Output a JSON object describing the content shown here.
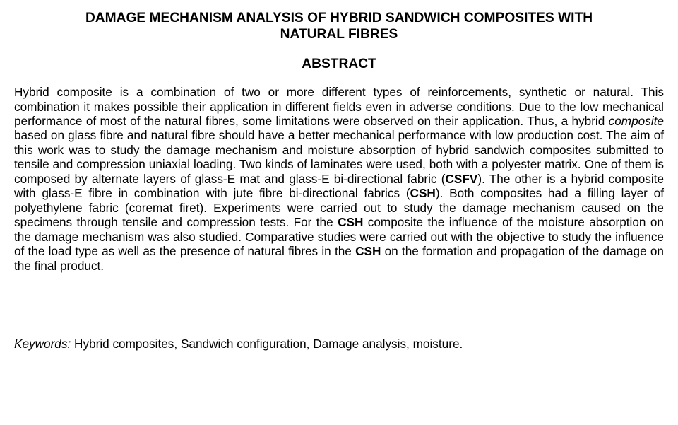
{
  "title_line1": "DAMAGE MECHANISM ANALYSIS OF HYBRID SANDWICH COMPOSITES WITH",
  "title_line2": "NATURAL FIBRES",
  "abstract_heading": "ABSTRACT",
  "abstract": {
    "s1a": "Hybrid composite is a combination of two or more different types of reinforcements, synthetic or natural. This combination it makes possible their application in different fields even in adverse conditions. Due to the low mechanical performance of most of the natural fibres, some limitations were observed on their application. Thus, a hybrid ",
    "s1b_italic": "composite",
    "s1c": " based on glass fibre and natural fibre should have a better mechanical performance with low production cost. The aim of this work was to study the damage mechanism and moisture absorption of hybrid sandwich composites submitted to tensile and compression uniaxial loading. Two kinds of laminates were used, both with a polyester matrix. One of them is composed by alternate layers of glass-E mat and glass-E bi-directional fabric (",
    "s1d_bold": "CSFV",
    "s1e": "). The other is a hybrid composite with glass-E fibre in combination with jute fibre bi-directional fabrics (",
    "s1f_bold": "CSH",
    "s1g": "). Both composites had a filling layer of polyethylene fabric (coremat firet). Experiments were carried out to study the damage mechanism caused on the specimens through tensile and compression tests. For the ",
    "s1h_bold": "CSH",
    "s1i": " composite the influence of the moisture absorption on the damage mechanism was also studied. Comparative studies were carried out with the objective to study the influence of the load type as well as the presence of natural fibres in the ",
    "s1j_bold": "CSH",
    "s1k": " on the formation and propagation of the damage on the final product."
  },
  "keywords_label": "Keywords:",
  "keywords_text": " Hybrid composites, Sandwich configuration, Damage analysis, moisture."
}
